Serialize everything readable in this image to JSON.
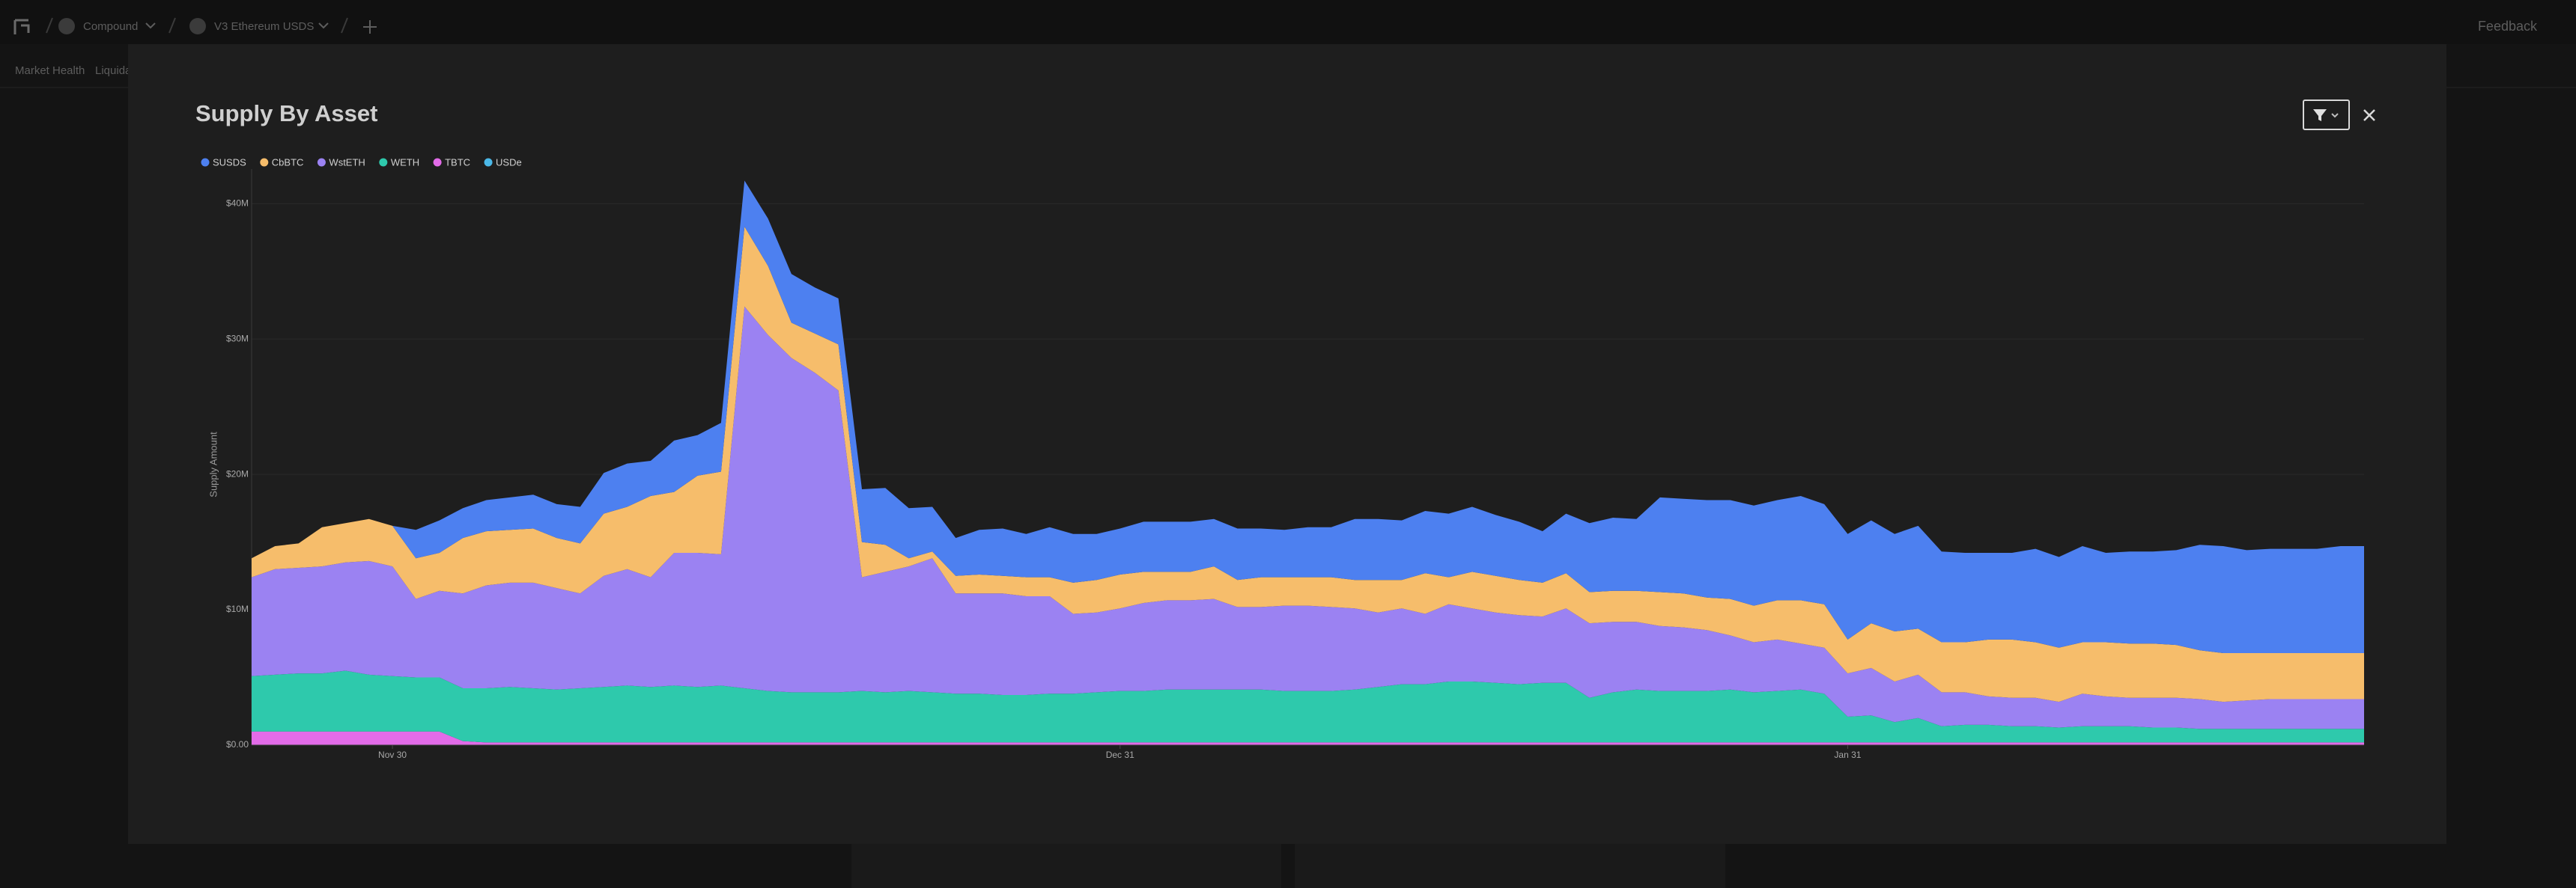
{
  "topbar": {
    "protocol": "Compound",
    "market": "V3 Ethereum USDS",
    "feedback": "Feedback"
  },
  "tabs": [
    "Market Health",
    "Liquida"
  ],
  "chart_data": {
    "type": "stacked_area",
    "title": "Supply By Asset",
    "y_label": "Supply Amount",
    "grid": true,
    "legend": "top-left",
    "categories": [
      null,
      null,
      null,
      null,
      null,
      null,
      "Nov 30",
      null,
      null,
      null,
      null,
      null,
      null,
      null,
      null,
      null,
      null,
      null,
      null,
      null,
      null,
      null,
      null,
      null,
      null,
      null,
      null,
      null,
      null,
      null,
      null,
      null,
      null,
      null,
      null,
      null,
      null,
      "Dec 31",
      null,
      null,
      null,
      null,
      null,
      null,
      null,
      null,
      null,
      null,
      null,
      null,
      null,
      null,
      null,
      null,
      null,
      null,
      null,
      null,
      null,
      null,
      null,
      null,
      null,
      null,
      null,
      null,
      null,
      null,
      "Jan 31",
      null,
      null,
      null,
      null,
      null,
      null,
      null,
      null,
      null,
      null,
      null,
      null,
      null,
      null,
      null,
      null,
      null,
      null,
      null,
      null,
      null,
      null
    ],
    "ylim": [
      0,
      42
    ],
    "yticks": [
      {
        "value": 0,
        "label": "$0.00"
      },
      {
        "value": 10,
        "label": "$10M"
      },
      {
        "value": 20,
        "label": "$20M"
      },
      {
        "value": 30,
        "label": "$30M"
      },
      {
        "value": 40,
        "label": "$40M"
      }
    ],
    "series": [
      {
        "name": "SUSDS",
        "color": "#4d80f0",
        "values": [
          0,
          0,
          0,
          0,
          0,
          0,
          0,
          2.1,
          2.4,
          2.2,
          2.3,
          2.4,
          2.5,
          2.5,
          2.7,
          3.0,
          3.2,
          2.6,
          3.8,
          3.0,
          3.6,
          3.4,
          3.5,
          3.6,
          3.4,
          3.4,
          3.9,
          4.2,
          3.7,
          3.3,
          2.8,
          3.3,
          3.5,
          3.2,
          3.7,
          3.6,
          3.4,
          3.4,
          3.7,
          3.7,
          3.7,
          3.5,
          3.8,
          3.6,
          3.5,
          3.7,
          3.7,
          4.5,
          4.5,
          4.4,
          4.6,
          4.7,
          4.8,
          4.5,
          4.3,
          3.8,
          4.4,
          5.1,
          5.4,
          5.3,
          7.0,
          7.0,
          7.2,
          7.3,
          7.4,
          7.4,
          7.7,
          7.4,
          7.8,
          7.6,
          7.2,
          7.6,
          6.7,
          6.6,
          6.4,
          6.4,
          6.9,
          6.7,
          7.1,
          6.6,
          6.8,
          6.8,
          7.0,
          7.8,
          7.9,
          7.6,
          7.7,
          7.7,
          7.7,
          7.9,
          7.9
        ]
      },
      {
        "name": "CbBTC",
        "color": "#f6bd6b",
        "values": [
          1.4,
          1.7,
          1.8,
          2.9,
          2.9,
          3.1,
          3.0,
          3.0,
          2.8,
          4.1,
          4.0,
          3.9,
          4.0,
          3.7,
          3.7,
          4.6,
          4.6,
          6.0,
          4.5,
          5.7,
          6.1,
          5.9,
          5.1,
          2.6,
          2.9,
          3.4,
          2.6,
          2.0,
          0.6,
          0.5,
          1.3,
          1.4,
          1.3,
          1.4,
          1.4,
          2.3,
          2.4,
          2.5,
          2.3,
          2.1,
          2.1,
          2.4,
          2.0,
          2.2,
          2.1,
          2.1,
          2.2,
          2.1,
          2.4,
          2.1,
          3.0,
          2.0,
          2.7,
          2.7,
          2.6,
          2.5,
          2.6,
          2.3,
          2.3,
          2.3,
          2.5,
          2.5,
          2.4,
          2.7,
          2.7,
          2.9,
          3.2,
          3.2,
          2.5,
          3.3,
          3.7,
          3.4,
          3.7,
          3.7,
          4.2,
          4.3,
          4.1,
          4.0,
          3.8,
          4.0,
          4.0,
          4.0,
          3.9,
          3.6,
          3.6,
          3.5,
          3.4,
          3.4,
          3.4,
          3.4,
          3.4
        ]
      },
      {
        "name": "WstETH",
        "color": "#9b82f2",
        "values": [
          7.3,
          7.8,
          7.8,
          7.9,
          8.0,
          8.4,
          8.1,
          5.8,
          6.4,
          7.0,
          7.6,
          7.7,
          7.8,
          7.5,
          7.0,
          8.2,
          8.6,
          8.1,
          9.8,
          9.9,
          9.7,
          28.2,
          26.3,
          24.7,
          23.6,
          22.3,
          8.4,
          8.9,
          9.2,
          9.9,
          7.4,
          7.4,
          7.5,
          7.3,
          7.2,
          5.9,
          5.9,
          6.1,
          6.5,
          6.6,
          6.6,
          6.7,
          6.1,
          6.1,
          6.3,
          6.3,
          6.2,
          6.0,
          5.5,
          5.6,
          5.2,
          5.7,
          5.4,
          5.2,
          5.1,
          4.9,
          5.5,
          5.5,
          5.2,
          5.0,
          4.8,
          4.7,
          4.5,
          4.0,
          3.7,
          3.8,
          3.4,
          3.4,
          3.2,
          3.5,
          3.0,
          3.2,
          2.5,
          2.4,
          2.1,
          2.1,
          2.1,
          1.9,
          2.4,
          2.2,
          2.1,
          2.2,
          2.2,
          2.2,
          2.0,
          2.1,
          2.2,
          2.2,
          2.2,
          2.2,
          2.2
        ]
      },
      {
        "name": "WETH",
        "color": "#2ec9ac",
        "values": [
          4.1,
          4.2,
          4.3,
          4.3,
          4.5,
          4.2,
          4.1,
          4.0,
          4.0,
          3.9,
          4.0,
          4.1,
          4.0,
          3.9,
          4.0,
          4.1,
          4.2,
          4.1,
          4.2,
          4.1,
          4.2,
          4.0,
          3.8,
          3.7,
          3.7,
          3.7,
          3.8,
          3.7,
          3.8,
          3.7,
          3.6,
          3.6,
          3.5,
          3.5,
          3.6,
          3.6,
          3.7,
          3.8,
          3.8,
          3.9,
          3.9,
          3.9,
          3.9,
          3.9,
          3.8,
          3.8,
          3.8,
          3.9,
          4.1,
          4.3,
          4.3,
          4.5,
          4.5,
          4.4,
          4.3,
          4.4,
          4.4,
          3.3,
          3.7,
          3.9,
          3.8,
          3.8,
          3.8,
          3.9,
          3.7,
          3.8,
          3.9,
          3.6,
          1.9,
          2.0,
          1.5,
          1.8,
          1.2,
          1.3,
          1.3,
          1.2,
          1.2,
          1.1,
          1.2,
          1.2,
          1.2,
          1.1,
          1.1,
          1.0,
          1.0,
          1.0,
          1.0,
          1.0,
          1.0,
          1.0,
          1.0
        ]
      },
      {
        "name": "TBTC",
        "color": "#e26be8",
        "values": [
          1.0,
          1.0,
          1.0,
          1.0,
          1.0,
          1.0,
          1.0,
          1.0,
          1.0,
          0.3,
          0.2,
          0.2,
          0.2,
          0.2,
          0.2,
          0.2,
          0.2,
          0.2,
          0.2,
          0.2,
          0.2,
          0.2,
          0.2,
          0.2,
          0.2,
          0.2,
          0.2,
          0.2,
          0.2,
          0.2,
          0.2,
          0.2,
          0.2,
          0.2,
          0.2,
          0.2,
          0.2,
          0.2,
          0.2,
          0.2,
          0.2,
          0.2,
          0.2,
          0.2,
          0.2,
          0.2,
          0.2,
          0.2,
          0.2,
          0.2,
          0.2,
          0.2,
          0.2,
          0.2,
          0.2,
          0.2,
          0.2,
          0.2,
          0.2,
          0.2,
          0.2,
          0.2,
          0.2,
          0.2,
          0.2,
          0.2,
          0.2,
          0.2,
          0.2,
          0.2,
          0.2,
          0.2,
          0.2,
          0.2,
          0.2,
          0.2,
          0.2,
          0.2,
          0.2,
          0.2,
          0.2,
          0.2,
          0.2,
          0.2,
          0.2,
          0.2,
          0.2,
          0.2,
          0.2,
          0.2,
          0.2
        ]
      },
      {
        "name": "USDe",
        "color": "#4bb8e8",
        "values": [
          0,
          0,
          0,
          0,
          0,
          0,
          0,
          0,
          0,
          0,
          0,
          0,
          0,
          0,
          0,
          0,
          0,
          0,
          0,
          0,
          0,
          0,
          0,
          0,
          0,
          0,
          0,
          0,
          0,
          0,
          0,
          0,
          0,
          0,
          0,
          0,
          0,
          0,
          0,
          0,
          0,
          0,
          0,
          0,
          0,
          0,
          0,
          0,
          0,
          0,
          0,
          0,
          0,
          0,
          0,
          0,
          0,
          0,
          0,
          0,
          0,
          0,
          0,
          0,
          0,
          0,
          0,
          0,
          0,
          0,
          0,
          0,
          0,
          0,
          0,
          0,
          0,
          0,
          0,
          0,
          0,
          0,
          0,
          0,
          0,
          0,
          0,
          0,
          0,
          0,
          0
        ]
      }
    ]
  }
}
